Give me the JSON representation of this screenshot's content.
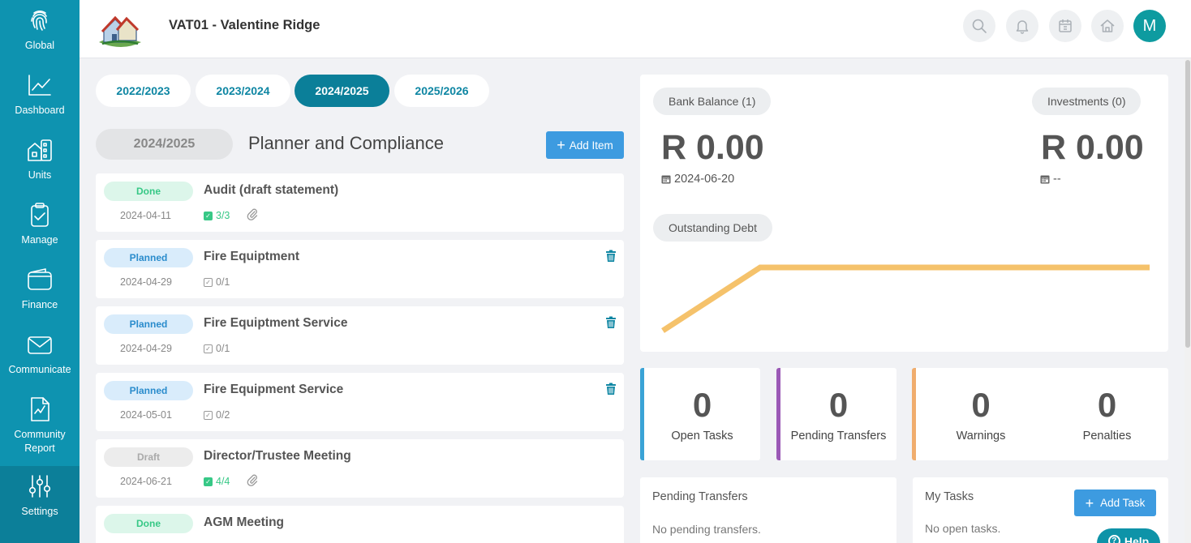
{
  "sidebar": {
    "items": [
      {
        "label": "Global",
        "icon": "fingerprint-icon"
      },
      {
        "label": "Dashboard",
        "icon": "chart-line-icon"
      },
      {
        "label": "Units",
        "icon": "building-icon"
      },
      {
        "label": "Manage",
        "icon": "clipboard-check-icon"
      },
      {
        "label": "Finance",
        "icon": "wallet-icon"
      },
      {
        "label": "Communicate",
        "icon": "envelope-icon"
      },
      {
        "label": "Community Report",
        "icon": "report-icon"
      },
      {
        "label": "Settings",
        "icon": "sliders-icon"
      }
    ]
  },
  "header": {
    "title": "VAT01 - Valentine Ridge",
    "avatar_initial": "M"
  },
  "year_tabs": [
    "2022/2023",
    "2023/2024",
    "2024/2025",
    "2025/2026"
  ],
  "active_year_tab": "2024/2025",
  "planner": {
    "year": "2024/2025",
    "title": "Planner and Compliance",
    "add_item_label": "Add Item",
    "items": [
      {
        "status": "Done",
        "date": "2024-04-11",
        "name": "Audit (draft statement)",
        "checks": "3/3",
        "complete": true,
        "attachment": true,
        "deletable": false
      },
      {
        "status": "Planned",
        "date": "2024-04-29",
        "name": "Fire Equiptment",
        "checks": "0/1",
        "complete": false,
        "attachment": false,
        "deletable": true
      },
      {
        "status": "Planned",
        "date": "2024-04-29",
        "name": "Fire Equiptment Service",
        "checks": "0/1",
        "complete": false,
        "attachment": false,
        "deletable": true
      },
      {
        "status": "Planned",
        "date": "2024-05-01",
        "name": "Fire Equipment Service",
        "checks": "0/2",
        "complete": false,
        "attachment": false,
        "deletable": true
      },
      {
        "status": "Draft",
        "date": "2024-06-21",
        "name": "Director/Trustee Meeting",
        "checks": "4/4",
        "complete": true,
        "attachment": true,
        "deletable": false
      },
      {
        "status": "Done",
        "date": "",
        "name": "AGM Meeting",
        "checks": "",
        "complete": true,
        "attachment": false,
        "deletable": false
      }
    ]
  },
  "finance": {
    "bank_balance_label": "Bank Balance (1)",
    "bank_balance_value": "R 0.00",
    "bank_balance_date": "2024-06-20",
    "investments_label": "Investments (0)",
    "investments_value": "R 0.00",
    "investments_date": "--",
    "outstanding_debt_label": "Outstanding Debt",
    "line_color": "#f5c26b"
  },
  "chart_data": {
    "type": "line",
    "series": [
      {
        "values": [
          0,
          1,
          1,
          1,
          1
        ]
      }
    ],
    "title": "",
    "xlabel": "",
    "ylabel": ""
  },
  "stats": [
    {
      "value": "0",
      "label": "Open Tasks",
      "color": "#3aa3d6"
    },
    {
      "value": "0",
      "label": "Pending Transfers",
      "color": "#9b59b6"
    },
    {
      "value": "0",
      "label": "Warnings",
      "color": "#f0ad6e"
    },
    {
      "value": "0",
      "label": "Penalties",
      "color": "#f0ad6e"
    }
  ],
  "pending_transfers": {
    "title": "Pending Transfers",
    "empty": "No pending transfers."
  },
  "my_tasks": {
    "title": "My Tasks",
    "empty": "No open tasks.",
    "add_label": "Add Task"
  },
  "help_label": "Help",
  "colors": {
    "sidebar": "#0e93b0",
    "accent": "#0b7f99",
    "button": "#3d9be0"
  }
}
